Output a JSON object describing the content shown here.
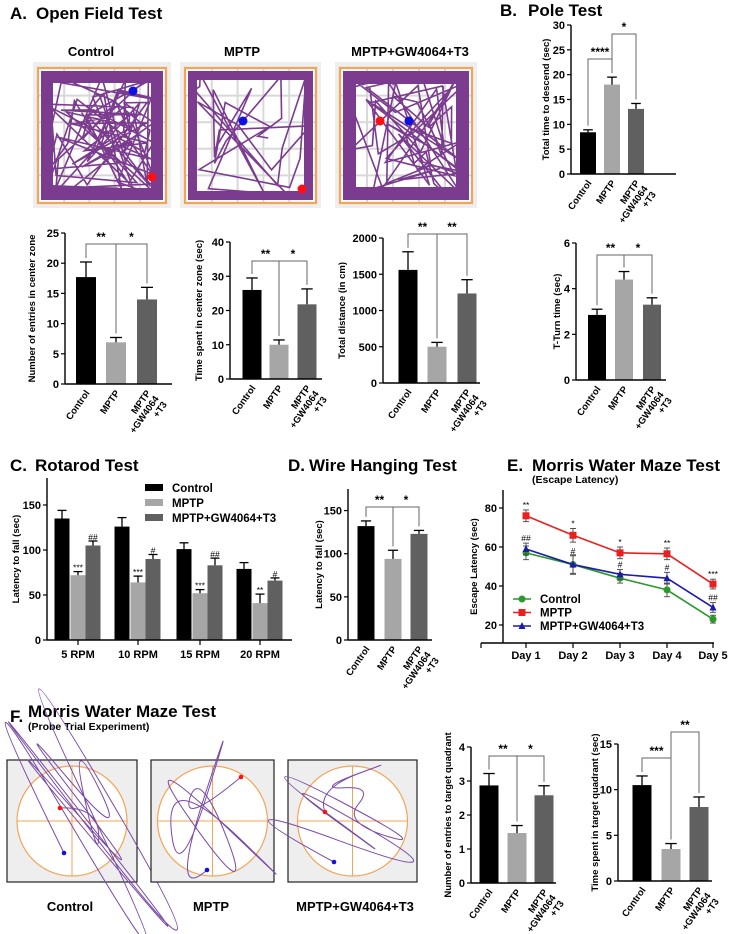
{
  "panels": {
    "A": {
      "label": "A.",
      "title": "Open Field Test",
      "groups": [
        "Control",
        "MPTP",
        "MPTP+GW4064+T3"
      ]
    },
    "B": {
      "label": "B.",
      "title": "Pole Test"
    },
    "C": {
      "label": "C.",
      "title": "Rotarod Test"
    },
    "D": {
      "label": "D.",
      "title": "Wire Hanging Test"
    },
    "E": {
      "label": "E.",
      "title": "Morris Water Maze Test",
      "subtitle": "(Escape Latency)"
    },
    "F": {
      "label": "F.",
      "title": "Morris Water Maze Test",
      "subtitle": "(Probe Trial Experiment)",
      "groups": [
        "Control",
        "MPTP",
        "MPTP+GW4064+T3"
      ]
    }
  },
  "colors": {
    "control": "#000000",
    "mptp": "#a6a6a6",
    "combo": "#606060",
    "track": "#7b3b8e",
    "arena": "#f3a557",
    "start": "#ff1010",
    "end": "#1010e0",
    "line_control": "#2a9a2a",
    "line_mptp": "#e82020",
    "line_combo": "#1c1ca8"
  },
  "chart_data": [
    {
      "id": "of-entries",
      "type": "bar",
      "ylabel": "Number of entries in center zone",
      "ylim": [
        0,
        25
      ],
      "yticks": [
        0,
        5,
        10,
        15,
        20,
        25
      ],
      "category_lines": [
        [
          "Control"
        ],
        [
          "MPTP"
        ],
        [
          "MPTP",
          "+GW4064",
          "+T3"
        ]
      ],
      "values": [
        17.7,
        6.9,
        14.0
      ],
      "errors": [
        2.5,
        0.8,
        2.0
      ],
      "brackets": [
        {
          "from": 0,
          "to": 1,
          "label": "**"
        },
        {
          "from": 1,
          "to": 2,
          "label": "*"
        }
      ]
    },
    {
      "id": "of-time",
      "type": "bar",
      "ylabel": "Time spent in center zone (sec)",
      "ylim": [
        0,
        40
      ],
      "yticks": [
        0,
        10,
        20,
        30,
        40
      ],
      "category_lines": [
        [
          "Control"
        ],
        [
          "MPTP"
        ],
        [
          "MPTP",
          "+GW4064",
          "+T3"
        ]
      ],
      "values": [
        26.0,
        10.0,
        21.8
      ],
      "errors": [
        3.5,
        1.4,
        4.5
      ],
      "brackets": [
        {
          "from": 0,
          "to": 1,
          "label": "**"
        },
        {
          "from": 1,
          "to": 2,
          "label": "*"
        }
      ]
    },
    {
      "id": "of-distance",
      "type": "bar",
      "ylabel": "Total distance (in cm)",
      "ylim": [
        0,
        2000
      ],
      "yticks": [
        0,
        500,
        1000,
        1500,
        2000
      ],
      "category_lines": [
        [
          "Control"
        ],
        [
          "MPTP"
        ],
        [
          "MPTP",
          "+GW4064",
          "+T3"
        ]
      ],
      "values": [
        1560,
        500,
        1235
      ],
      "errors": [
        250,
        60,
        190
      ],
      "brackets": [
        {
          "from": 0,
          "to": 1,
          "label": "**"
        },
        {
          "from": 1,
          "to": 2,
          "label": "**"
        }
      ]
    },
    {
      "id": "pole-descend",
      "type": "bar",
      "ylabel": "Total time to descend (sec)",
      "ylim": [
        0,
        30
      ],
      "yticks": [
        0,
        5,
        10,
        15,
        20,
        25,
        30
      ],
      "category_lines": [
        [
          "Control"
        ],
        [
          "MPTP"
        ],
        [
          "MPTP",
          "+GW4064",
          "+T3"
        ]
      ],
      "values": [
        8.4,
        18.0,
        13.1
      ],
      "errors": [
        0.5,
        1.5,
        1.1
      ],
      "brackets": [
        {
          "from": 0,
          "to": 1,
          "label": "****"
        },
        {
          "from": 1,
          "to": 2,
          "label": "*"
        }
      ]
    },
    {
      "id": "pole-tturn",
      "type": "bar",
      "ylabel": "T-Turn time (sec)",
      "ylim": [
        0,
        6
      ],
      "yticks": [
        0,
        2,
        4,
        6
      ],
      "category_lines": [
        [
          "Control"
        ],
        [
          "MPTP"
        ],
        [
          "MPTP",
          "+GW4064",
          "+T3"
        ]
      ],
      "values": [
        2.85,
        4.4,
        3.3
      ],
      "errors": [
        0.25,
        0.35,
        0.3
      ],
      "brackets": [
        {
          "from": 0,
          "to": 1,
          "label": "**"
        },
        {
          "from": 1,
          "to": 2,
          "label": "*"
        }
      ]
    },
    {
      "id": "rotarod",
      "type": "bar",
      "ylabel": "Latency to fall (sec)",
      "ylim": [
        0,
        180
      ],
      "yticks": [
        0,
        50,
        100,
        150
      ],
      "categories": [
        "5 RPM",
        "10 RPM",
        "15 RPM",
        "20 RPM"
      ],
      "legend": "top",
      "series": [
        {
          "name": "Control",
          "values": [
            135,
            126,
            101,
            79
          ],
          "errors": [
            9,
            10,
            7,
            7
          ],
          "annotations": [
            "",
            "",
            "",
            ""
          ]
        },
        {
          "name": "MPTP",
          "values": [
            72,
            64,
            52,
            41
          ],
          "errors": [
            4,
            7,
            4,
            10
          ],
          "annotations": [
            "***",
            "***",
            "***",
            "**"
          ]
        },
        {
          "name": "MPTP+GW4064+T3",
          "values": [
            105,
            90,
            83,
            66
          ],
          "errors": [
            5,
            5,
            8,
            3
          ],
          "annotations": [
            "##",
            "#",
            "##",
            "#"
          ]
        }
      ]
    },
    {
      "id": "wire-hanging",
      "type": "bar",
      "ylabel": "Latency to fall (sec)",
      "ylim": [
        0,
        175
      ],
      "yticks": [
        0,
        50,
        100,
        150
      ],
      "category_lines": [
        [
          "Control"
        ],
        [
          "MPTP"
        ],
        [
          "MPTP",
          "+GW4064",
          "+T3"
        ]
      ],
      "values": [
        132,
        94,
        123
      ],
      "errors": [
        6,
        10,
        4
      ],
      "brackets": [
        {
          "from": 0,
          "to": 1,
          "label": "**"
        },
        {
          "from": 1,
          "to": 2,
          "label": "*"
        }
      ]
    },
    {
      "id": "mwm-escape",
      "type": "line",
      "ylabel": "Escape Latency (sec)",
      "yticks": [
        20,
        40,
        60,
        80
      ],
      "x": [
        "Day 1",
        "Day 2",
        "Day 3",
        "Day 4",
        "Day 5"
      ],
      "legend": "bottom-left",
      "series": [
        {
          "name": "Control",
          "values": [
            57,
            51,
            44,
            38,
            23
          ],
          "errors": [
            3.5,
            5,
            2.5,
            3.5,
            2
          ],
          "annotations": [
            "",
            "",
            "",
            "",
            ""
          ]
        },
        {
          "name": "MPTP",
          "values": [
            76,
            66,
            57,
            56.5,
            41
          ],
          "errors": [
            3,
            3.5,
            3,
            3,
            2.5
          ],
          "annotations": [
            "**",
            "*",
            "*",
            "**",
            "***"
          ]
        },
        {
          "name": "MPTP+GW4064+T3",
          "values": [
            59,
            51,
            46,
            44,
            29
          ],
          "errors": [
            3,
            4.5,
            2.5,
            3,
            2.5
          ],
          "annotations": [
            "##",
            "#",
            "#",
            "#",
            "##"
          ]
        }
      ]
    },
    {
      "id": "probe-entries",
      "type": "bar",
      "ylabel": "Number of entries to target quadrant",
      "ylim": [
        0,
        4
      ],
      "yticks": [
        0,
        1,
        2,
        3,
        4
      ],
      "category_lines": [
        [
          "Control"
        ],
        [
          "MPTP"
        ],
        [
          "MPTP",
          "+GW4064",
          "+T3"
        ]
      ],
      "values": [
        2.87,
        1.47,
        2.58
      ],
      "errors": [
        0.35,
        0.22,
        0.28
      ],
      "brackets": [
        {
          "from": 0,
          "to": 1,
          "label": "**"
        },
        {
          "from": 1,
          "to": 2,
          "label": "*"
        }
      ]
    },
    {
      "id": "probe-time",
      "type": "bar",
      "ylabel": "Time spent in target quadrant (sec)",
      "ylim": [
        0,
        15
      ],
      "yticks": [
        0,
        5,
        10,
        15
      ],
      "category_lines": [
        [
          "Control"
        ],
        [
          "MPTP"
        ],
        [
          "MPTP",
          "+GW4064",
          "+T3"
        ]
      ],
      "values": [
        10.5,
        3.5,
        8.1
      ],
      "errors": [
        1.0,
        0.6,
        1.1
      ],
      "brackets": [
        {
          "from": 0,
          "to": 1,
          "label": "***"
        },
        {
          "from": 1,
          "to": 2,
          "label": "**"
        }
      ]
    }
  ]
}
